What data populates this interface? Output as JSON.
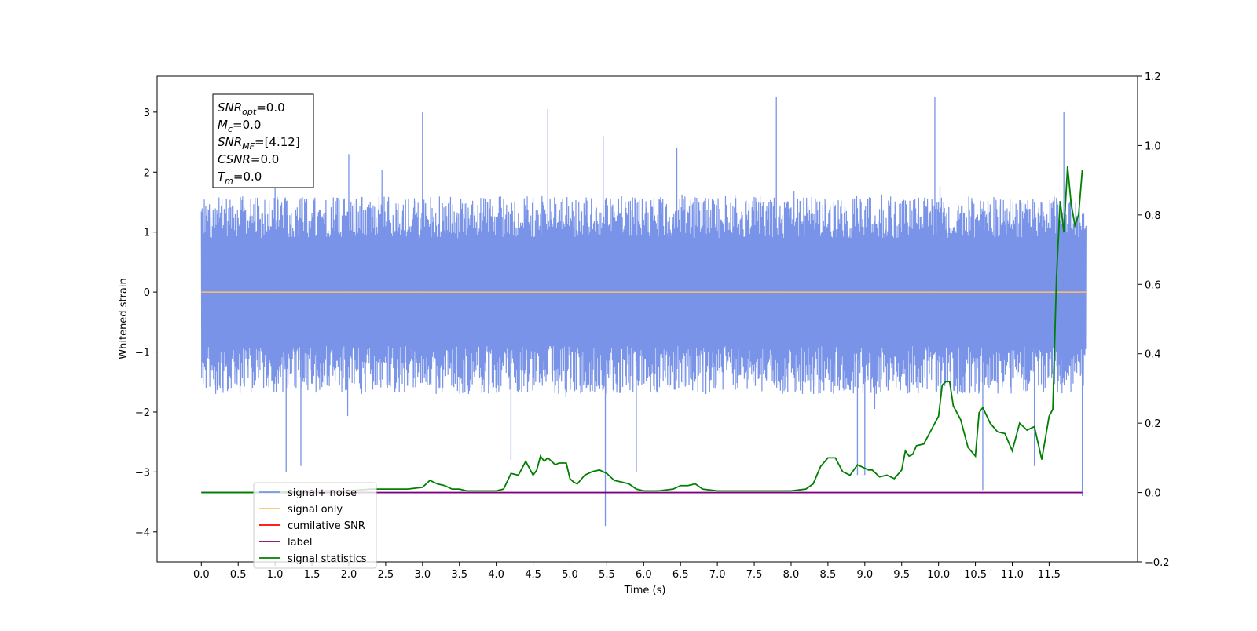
{
  "chart_data": {
    "type": "line",
    "xlabel": "Time (s)",
    "ylabel": "Whitened strain",
    "xlim": [
      -0.6,
      12.7
    ],
    "ylim": [
      -4.5,
      3.6
    ],
    "ylim_right": [
      -0.2,
      1.2
    ],
    "x_ticks": [
      "0.0",
      "0.5",
      "1.0",
      "1.5",
      "2.0",
      "2.5",
      "3.0",
      "3.5",
      "4.0",
      "4.5",
      "5.0",
      "5.5",
      "6.0",
      "6.5",
      "7.0",
      "7.5",
      "8.0",
      "8.5",
      "9.0",
      "9.5",
      "10.0",
      "10.5",
      "11.0",
      "11.5"
    ],
    "y_ticks": [
      "3",
      "2",
      "1",
      "0",
      "−1",
      "−2",
      "−3",
      "−4"
    ],
    "y_ticks_right": [
      "1.2",
      "1.0",
      "0.8",
      "0.6",
      "0.4",
      "0.2",
      "0.0",
      "−0.2"
    ],
    "annotation": [
      {
        "sym": "SNR",
        "sub": "opt",
        "val": "=0.0"
      },
      {
        "sym": "M",
        "sub": "c",
        "val": "=0.0"
      },
      {
        "sym": "SNR",
        "sub": "MF",
        "val": "=[4.12]"
      },
      {
        "sym": "CSNR",
        "sub": "",
        "val": "=0.0"
      },
      {
        "sym": "T",
        "sub": "m",
        "val": "=0.0"
      }
    ],
    "legend_position": "lower-left",
    "series": [
      {
        "name": "signal+ noise",
        "color": "#7893e8",
        "axis": "left",
        "noise_envelope": {
          "x_range": [
            0,
            12.0
          ],
          "typical_max": 1.5,
          "typical_min": -1.6,
          "peak_max": 3.3,
          "peak_min": -3.9
        }
      },
      {
        "name": "signal only",
        "color": "#ffbf6e",
        "axis": "left",
        "values": [
          {
            "x": 0,
            "y": 0
          },
          {
            "x": 12.0,
            "y": 0
          }
        ]
      },
      {
        "name": "cumilative SNR",
        "color": "#ff0000",
        "axis": "right",
        "values": []
      },
      {
        "name": "label",
        "color": "#800080",
        "axis": "right",
        "values": [
          {
            "x": 0,
            "y": 0
          },
          {
            "x": 11.95,
            "y": 0
          }
        ]
      },
      {
        "name": "signal statistics",
        "color": "#008000",
        "axis": "right",
        "x": [
          0.0,
          0.5,
          1.0,
          1.5,
          2.0,
          2.3,
          2.5,
          2.8,
          3.0,
          3.1,
          3.2,
          3.3,
          3.4,
          3.5,
          3.6,
          3.8,
          4.0,
          4.1,
          4.2,
          4.3,
          4.4,
          4.5,
          4.55,
          4.6,
          4.65,
          4.7,
          4.8,
          4.85,
          4.9,
          4.95,
          5.0,
          5.05,
          5.1,
          5.2,
          5.3,
          5.4,
          5.5,
          5.6,
          5.7,
          5.8,
          5.9,
          6.0,
          6.2,
          6.4,
          6.5,
          6.6,
          6.7,
          6.8,
          7.0,
          7.5,
          8.0,
          8.2,
          8.3,
          8.4,
          8.5,
          8.6,
          8.7,
          8.8,
          8.9,
          9.0,
          9.05,
          9.1,
          9.2,
          9.3,
          9.4,
          9.5,
          9.55,
          9.6,
          9.65,
          9.7,
          9.8,
          9.9,
          10.0,
          10.05,
          10.1,
          10.15,
          10.2,
          10.3,
          10.4,
          10.5,
          10.55,
          10.6,
          10.7,
          10.8,
          10.9,
          11.0,
          11.1,
          11.2,
          11.3,
          11.4,
          11.5,
          11.55,
          11.6,
          11.65,
          11.7,
          11.75,
          11.8,
          11.85,
          11.9,
          11.95
        ],
        "y": [
          0.0,
          0.0,
          0.0,
          0.005,
          0.005,
          0.01,
          0.01,
          0.01,
          0.015,
          0.035,
          0.025,
          0.02,
          0.01,
          0.01,
          0.005,
          0.005,
          0.005,
          0.01,
          0.055,
          0.05,
          0.09,
          0.05,
          0.065,
          0.105,
          0.09,
          0.1,
          0.08,
          0.085,
          0.085,
          0.085,
          0.04,
          0.03,
          0.025,
          0.05,
          0.06,
          0.065,
          0.055,
          0.035,
          0.03,
          0.025,
          0.01,
          0.005,
          0.005,
          0.01,
          0.02,
          0.02,
          0.025,
          0.01,
          0.005,
          0.005,
          0.005,
          0.01,
          0.025,
          0.075,
          0.1,
          0.1,
          0.06,
          0.05,
          0.08,
          0.07,
          0.065,
          0.065,
          0.045,
          0.05,
          0.04,
          0.065,
          0.12,
          0.105,
          0.11,
          0.135,
          0.14,
          0.18,
          0.22,
          0.31,
          0.32,
          0.32,
          0.25,
          0.21,
          0.13,
          0.105,
          0.23,
          0.245,
          0.2,
          0.175,
          0.17,
          0.12,
          0.2,
          0.18,
          0.19,
          0.095,
          0.22,
          0.24,
          0.62,
          0.84,
          0.75,
          0.94,
          0.83,
          0.77,
          0.8,
          0.93
        ]
      }
    ]
  }
}
